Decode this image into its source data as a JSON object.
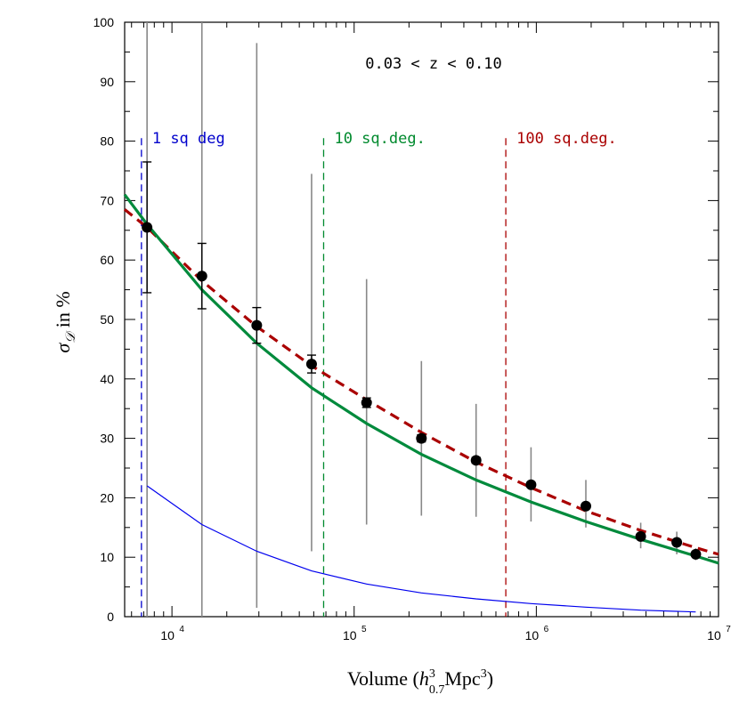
{
  "chart_data": {
    "type": "line",
    "title": "0.03 < z < 0.10",
    "xlabel": "Volume (h_0.7^3 Mpc^3)",
    "ylabel": "σ_D in %",
    "xscale": "log",
    "xlim": [
      5500,
      10000000
    ],
    "ylim": [
      0,
      100
    ],
    "grid": false,
    "y_ticks": [
      "0",
      "10",
      "20",
      "30",
      "40",
      "50",
      "60",
      "70",
      "80",
      "90",
      "100"
    ],
    "x_ticks": [
      {
        "base": "10",
        "exp": "4",
        "value": 10000
      },
      {
        "base": "10",
        "exp": "5",
        "value": 100000
      },
      {
        "base": "10",
        "exp": "6",
        "value": 1000000
      },
      {
        "base": "10",
        "exp": "7",
        "value": 10000000
      }
    ],
    "xlabel_parts": {
      "prefix": "Volume (",
      "h": "h",
      "sup": "3",
      "sub": "0.7",
      "unit": "Mpc",
      "unit_sup": "3",
      "suffix": ")"
    },
    "ylabel_parts": {
      "sigma": "σ",
      "sub": "𝒟",
      "rest": " in %"
    },
    "survey_markers": [
      {
        "label": "1 sq deg",
        "x": 6800,
        "color": "#0000cc"
      },
      {
        "label": "10 sq.deg.",
        "x": 68000,
        "color": "#008a2e"
      },
      {
        "label": "100 sq.deg.",
        "x": 680000,
        "color": "#aa0000"
      }
    ],
    "points": {
      "name": "measurements",
      "x": [
        7300,
        14600,
        29200,
        58400,
        117000,
        234000,
        467000,
        935000,
        1870000,
        3740000,
        5900000,
        7500000
      ],
      "y": [
        65.5,
        57.3,
        49.0,
        42.5,
        36.0,
        30.0,
        26.3,
        22.2,
        18.6,
        13.5,
        12.5,
        10.5
      ],
      "err": [
        11.0,
        5.5,
        3.0,
        1.5,
        0.8,
        0.6,
        0.5,
        0.4,
        0.4,
        0.3,
        0.3,
        0.3
      ],
      "range_low": [
        0,
        0,
        1.5,
        11.0,
        15.5,
        17.0,
        16.8,
        16.0,
        15.0,
        11.5,
        10.5,
        9.5
      ],
      "range_high": [
        100,
        100,
        96.5,
        74.5,
        56.8,
        43.0,
        35.8,
        28.5,
        23.0,
        15.8,
        14.3,
        11.5
      ]
    },
    "series": [
      {
        "name": "red dashed fit",
        "color": "#aa0000",
        "style": "dashed",
        "x": [
          5500,
          7300,
          14600,
          29200,
          58400,
          117000,
          234000,
          467000,
          935000,
          1870000,
          3740000,
          7500000,
          10000000
        ],
        "y": [
          68.5,
          65.5,
          56.5,
          48.8,
          42.2,
          36.5,
          31.0,
          26.0,
          21.7,
          17.8,
          14.5,
          11.6,
          10.5
        ]
      },
      {
        "name": "green solid fit",
        "color": "#008a3c",
        "style": "solid",
        "x": [
          5500,
          7300,
          14600,
          29200,
          58400,
          117000,
          234000,
          467000,
          935000,
          1870000,
          3740000,
          7500000,
          10000000
        ],
        "y": [
          71.0,
          66.0,
          55.0,
          46.0,
          38.5,
          32.5,
          27.3,
          23.0,
          19.3,
          16.0,
          13.0,
          10.2,
          9.0
        ]
      },
      {
        "name": "blue thin curve",
        "color": "#0000ee",
        "style": "solid",
        "x": [
          7300,
          14600,
          29200,
          58400,
          117000,
          234000,
          467000,
          935000,
          1870000,
          3740000,
          7500000
        ],
        "y": [
          22.0,
          15.5,
          11.0,
          7.7,
          5.5,
          4.0,
          3.0,
          2.2,
          1.6,
          1.1,
          0.8
        ]
      }
    ]
  }
}
